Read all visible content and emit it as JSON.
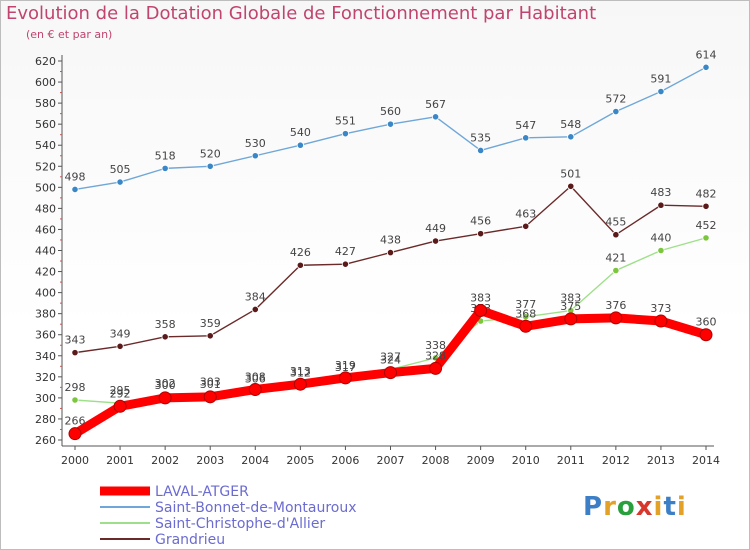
{
  "title": "Evolution de la Dotation Globale de Fonctionnement par Habitant",
  "subtitle": "(en € et par an)",
  "logo_text": "Proxiti",
  "chart_data": {
    "type": "line",
    "title": "Evolution de la Dotation Globale de Fonctionnement par Habitant",
    "subtitle": "(en € et par an)",
    "x": [
      "2000",
      "2001",
      "2002",
      "2003",
      "2004",
      "2005",
      "2006",
      "2007",
      "2008",
      "2009",
      "2010",
      "2011",
      "2012",
      "2013",
      "2014"
    ],
    "ylim": [
      260,
      620
    ],
    "yticks": [
      260,
      280,
      300,
      320,
      340,
      360,
      380,
      400,
      420,
      440,
      460,
      480,
      500,
      520,
      540,
      560,
      580,
      600,
      620
    ],
    "grid": false,
    "legend_position": "bottom-left",
    "series": [
      {
        "name": "LAVAL-ATGER",
        "color": "#ff0000",
        "marker": "#ff0000",
        "values": [
          266,
          292,
          300,
          301,
          308,
          313,
          319,
          324,
          328,
          383,
          368,
          375,
          376,
          373,
          360
        ],
        "labels": [
          "266",
          "292",
          "300",
          "301",
          "308",
          "313",
          "319",
          "324",
          "328",
          "383",
          "368",
          "375",
          "376",
          "373",
          "360"
        ]
      },
      {
        "name": "Saint-Bonnet-de-Montauroux",
        "color": "#6fa7d8",
        "marker": "#3a87c8",
        "values": [
          498,
          505,
          518,
          520,
          530,
          540,
          551,
          560,
          567,
          535,
          547,
          548,
          572,
          591,
          614
        ],
        "labels": [
          "498",
          "505",
          "518",
          "520",
          "530",
          "540",
          "551",
          "560",
          "567",
          "535",
          "547",
          "548",
          "572",
          "591",
          "614"
        ]
      },
      {
        "name": "Saint-Christophe-d'Allier",
        "color": "#9ee089",
        "marker": "#7cc63e",
        "values": [
          298,
          295,
          302,
          303,
          306,
          312,
          317,
          327,
          338,
          373,
          377,
          383,
          421,
          440,
          452
        ],
        "labels": [
          "298",
          "295",
          "302",
          "303",
          "306",
          "312",
          "317",
          "327",
          "338",
          "373",
          "377",
          "383",
          "421",
          "440",
          "452"
        ]
      },
      {
        "name": "Grandrieu",
        "color": "#6b2a2a",
        "marker": "#5a1a1a",
        "values": [
          343,
          349,
          358,
          359,
          384,
          426,
          427,
          438,
          449,
          456,
          463,
          501,
          455,
          483,
          482
        ],
        "labels": [
          "343",
          "349",
          "358",
          "359",
          "384",
          "426",
          "427",
          "438",
          "449",
          "456",
          "463",
          "501",
          "455",
          "483",
          "482"
        ]
      }
    ]
  }
}
